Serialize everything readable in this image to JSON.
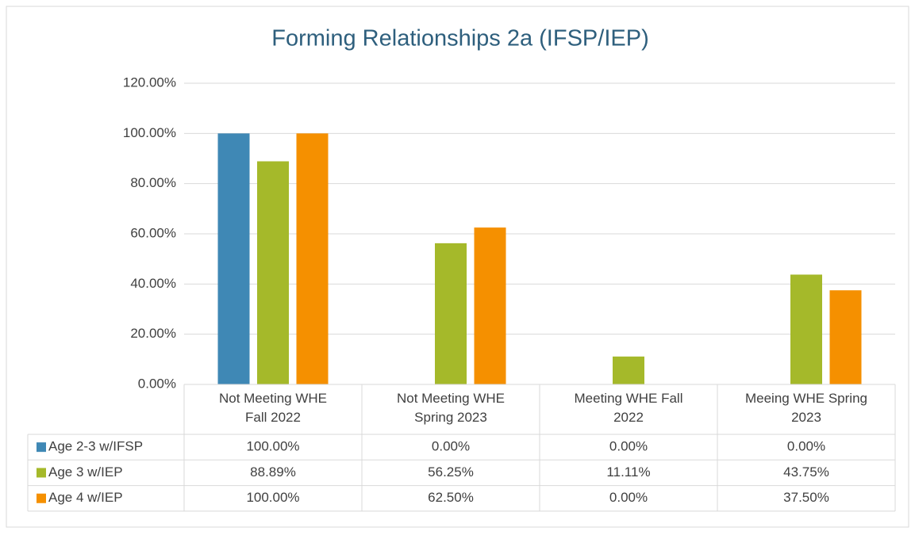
{
  "chart_data": {
    "type": "bar",
    "title": "Forming Relationships 2a (IFSP/IEP)",
    "categories": [
      "Not Meeting WHE Fall 2022",
      "Not Meeting WHE Spring 2023",
      "Meeting WHE Fall 2022",
      "Meeing WHE Spring 2023"
    ],
    "series": [
      {
        "name": "Age 2-3 w/IFSP",
        "color": "#3f88b5",
        "values": [
          100,
          0,
          0,
          0
        ],
        "value_labels": [
          "100.00%",
          "0.00%",
          "0.00%",
          "0.00%"
        ]
      },
      {
        "name": "Age 3 w/IEP",
        "color": "#a5b92a",
        "values": [
          88.89,
          56.25,
          11.11,
          43.75
        ],
        "value_labels": [
          "88.89%",
          "56.25%",
          "11.11%",
          "43.75%"
        ]
      },
      {
        "name": "Age 4 w/IEP",
        "color": "#f59000",
        "values": [
          100,
          62.5,
          0,
          37.5
        ],
        "value_labels": [
          "100.00%",
          "62.50%",
          "0.00%",
          "37.50%"
        ]
      }
    ],
    "ylim": [
      0,
      120
    ],
    "yticks": [
      {
        "value": 0,
        "label": "0.00%"
      },
      {
        "value": 20,
        "label": "20.00%"
      },
      {
        "value": 40,
        "label": "40.00%"
      },
      {
        "value": 60,
        "label": "60.00%"
      },
      {
        "value": 80,
        "label": "80.00%"
      },
      {
        "value": 100,
        "label": "100.00%"
      },
      {
        "value": 120,
        "label": "120.00%"
      }
    ],
    "grid": true,
    "legend": "data-table"
  }
}
